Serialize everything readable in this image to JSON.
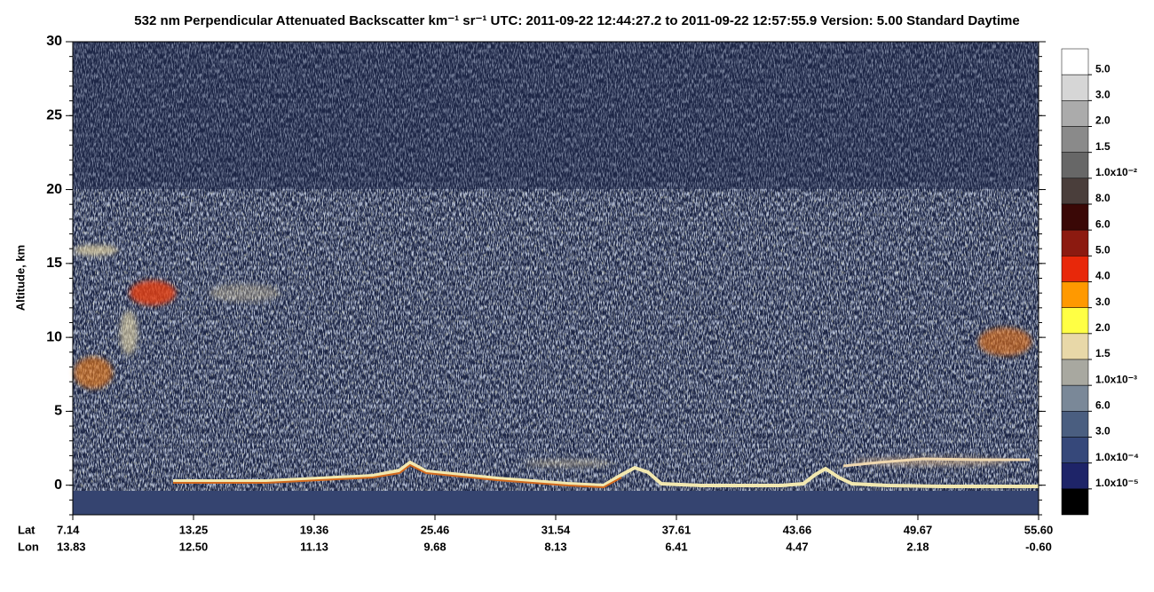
{
  "chart_data": {
    "type": "heatmap",
    "title": "532 nm Perpendicular Attenuated Backscatter km⁻¹ sr⁻¹  UTC: 2011-09-22 12:44:27.2 to 2011-09-22 12:57:55.9  Version: 5.00 Standard Daytime",
    "y_label": "Altitude, km",
    "ylim": [
      -2,
      30
    ],
    "yticks": [
      0,
      5,
      10,
      15,
      20,
      25,
      30
    ],
    "x_rows": [
      {
        "name": "Lat",
        "labels": [
          "7.14",
          "13.25",
          "19.36",
          "25.46",
          "31.54",
          "37.61",
          "43.66",
          "49.67",
          "55.60"
        ]
      },
      {
        "name": "Lon",
        "labels": [
          "13.83",
          "12.50",
          "11.13",
          "9.68",
          "8.13",
          "6.41",
          "4.47",
          "2.18",
          "-0.60"
        ]
      }
    ],
    "colorbar": {
      "colors": [
        "#ffffff",
        "#d6d6d6",
        "#ababab",
        "#8a8a8a",
        "#676767",
        "#4a3e3b",
        "#3a0806",
        "#8c1a10",
        "#e8280a",
        "#ff9900",
        "#ffff44",
        "#e8d8a8",
        "#a8a8a0",
        "#7a8898",
        "#4a5e80",
        "#36487a",
        "#1e2468",
        "#000000"
      ],
      "labels": [
        "5.0",
        "3.0",
        "2.0",
        "1.5",
        "1.0x10⁻²",
        "8.0",
        "6.0",
        "5.0",
        "4.0",
        "3.0",
        "2.0",
        "1.5",
        "1.0x10⁻³",
        "6.0",
        "3.0",
        "1.0x10⁻⁴",
        "1.0x10⁻⁵"
      ]
    }
  }
}
